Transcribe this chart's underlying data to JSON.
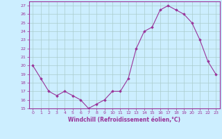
{
  "x": [
    0,
    1,
    2,
    3,
    4,
    5,
    6,
    7,
    8,
    9,
    10,
    11,
    12,
    13,
    14,
    15,
    16,
    17,
    18,
    19,
    20,
    21,
    22,
    23
  ],
  "y": [
    20,
    18.5,
    17,
    16.5,
    17,
    16.5,
    16,
    15,
    15.5,
    16,
    17,
    17,
    18.5,
    22,
    24,
    24.5,
    26.5,
    27,
    26.5,
    26,
    25,
    23,
    20.5,
    19
  ],
  "line_color": "#993399",
  "marker": "D",
  "marker_size": 1.8,
  "bg_color": "#cceeff",
  "grid_color": "#aacccc",
  "xlabel": "Windchill (Refroidissement éolien,°C)",
  "tick_color": "#993399",
  "ylim": [
    15,
    27.5
  ],
  "xlim": [
    -0.5,
    23.5
  ],
  "yticks": [
    15,
    16,
    17,
    18,
    19,
    20,
    21,
    22,
    23,
    24,
    25,
    26,
    27
  ],
  "xticks": [
    0,
    1,
    2,
    3,
    4,
    5,
    6,
    7,
    8,
    9,
    10,
    11,
    12,
    13,
    14,
    15,
    16,
    17,
    18,
    19,
    20,
    21,
    22,
    23
  ],
  "xtick_labels": [
    "0",
    "1",
    "2",
    "3",
    "4",
    "5",
    "6",
    "7",
    "8",
    "9",
    "10",
    "11",
    "12",
    "13",
    "14",
    "15",
    "16",
    "17",
    "18",
    "19",
    "20",
    "21",
    "22",
    "23"
  ]
}
